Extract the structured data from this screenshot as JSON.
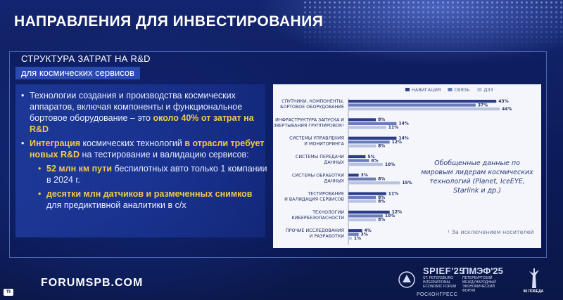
{
  "header": {
    "title": "НАПРАВЛЕНИЯ ДЛЯ ИНВЕСТИРОВАНИЯ"
  },
  "section": {
    "title_line1": "СТРУКТУРА ЗАТРАТ НА R&D",
    "title_line2": "для космических сервисов"
  },
  "bullets": {
    "b1_text": "Технологии создания и производства космических аппаратов, включая компоненты и функциональное бортовое оборудование – это ",
    "b1_highlight": "около 40% от затрат на R&D",
    "b2_hl1": "Интеграция",
    "b2_text1": " космических технологий ",
    "b2_hl2": "в отрасли требует новых R&D",
    "b2_text2": " на тестирование и валидацию сервисов:",
    "sub1_hl": "52 млн км пути",
    "sub1_text": " беспилотных авто только 1 компании в 2024 г.",
    "sub2_hl": "десятки млн датчиков и размеченных снимков",
    "sub2_text": " для предиктивной аналитики в с/х"
  },
  "chart_data": {
    "type": "bar",
    "orientation": "horizontal",
    "categories": [
      [
        "СПУТНИКИ, КОМПОНЕНТЫ,",
        "БОРТОВОЕ ОБОРУДОВАНИЕ"
      ],
      [
        "ИНФРАСТРУКТУРА ЗАПУСКА И",
        "РАЗВЕРТЫВАНИЯ ГРУППИРОВОК¹"
      ],
      [
        "СИСТЕМЫ УПРАВЛЕНИЯ",
        "И МОНИТОРИНГА"
      ],
      [
        "СИСТЕМЫ ПЕРЕДАЧИ",
        "ДАННЫХ"
      ],
      [
        "СИСТЕМЫ ОБРАБОТКИ",
        "ДАННЫХ"
      ],
      [
        "ТЕСТИРОВАНИЕ",
        "И ВАЛИДАЦИЯ СЕРВИСОВ"
      ],
      [
        "ТЕХНОЛОГИИ",
        "КИБЕРБЕЗОПАСНОСТИ"
      ],
      [
        "ПРОЧИЕ ИССЛЕДОВАНИЯ",
        "И РАЗРАБОТКИ"
      ]
    ],
    "series": [
      {
        "name": "НАВИГАЦИЯ",
        "color": "#2b3d86",
        "values": [
          43,
          8,
          14,
          5,
          3,
          11,
          12,
          4
        ]
      },
      {
        "name": "СВЯЗЬ",
        "color": "#6a7bb8",
        "values": [
          37,
          14,
          12,
          6,
          8,
          8,
          10,
          3
        ]
      },
      {
        "name": "ДЗЗ",
        "color": "#b9c3e0",
        "values": [
          44,
          11,
          8,
          10,
          15,
          8,
          8,
          1
        ]
      }
    ],
    "value_suffix": "%",
    "xlim": [
      0,
      45
    ],
    "legend_position": "top-right",
    "grid": false
  },
  "note": {
    "text": "Обобщенные данные по мировым лидерам космических технологий (Planet, IceEYE, Starlink и др.)",
    "footnote": "¹ За исключением носителей"
  },
  "footer": {
    "website": "FORUMSPB.COM",
    "badge": "TI",
    "spief_big": "SPIEF'25",
    "spief_small": "ST. PETERSBURG INTERNATIONAL ECONOMIC FORUM",
    "pmef_big": "ПМЭФ'25",
    "pmef_small": "ПЕТЕРБУРГСКИЙ МЕЖДУНАРОДНЫЙ ЭКОНОМИЧЕСКИЙ ФОРУМ",
    "roscongress": "РОСКОНГРЕСС",
    "pobeda": "80 ПОБЕДА"
  }
}
